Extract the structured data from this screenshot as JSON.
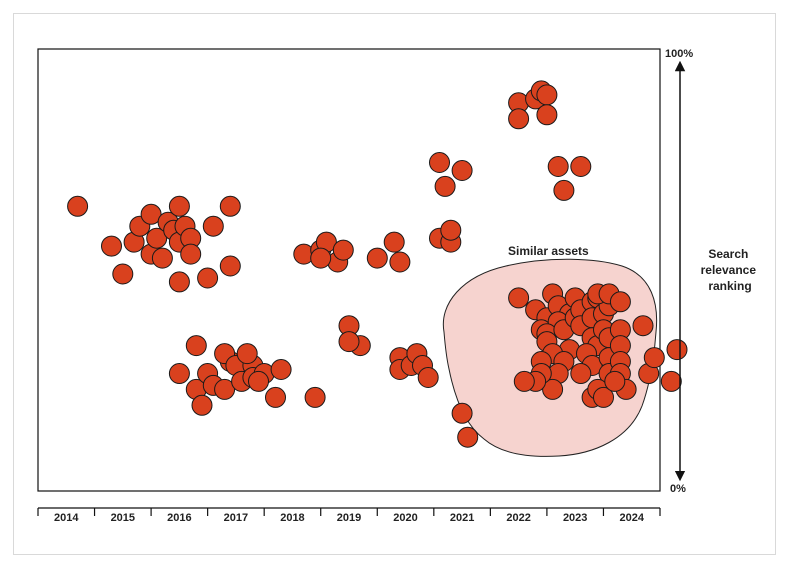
{
  "chart_data": {
    "type": "scatter",
    "title": "",
    "xlabel": "",
    "x_categories": [
      "2014",
      "2015",
      "2016",
      "2017",
      "2018",
      "2019",
      "2020",
      "2021",
      "2022",
      "2023",
      "2024"
    ],
    "y_axis": {
      "label_lines": [
        "Search",
        "relevance",
        "ranking"
      ],
      "top_label": "100%",
      "bottom_label": "0%",
      "ylim": [
        0,
        100
      ]
    },
    "highlight_region": {
      "label": "Similar assets",
      "color": "#f6d3cf"
    },
    "dot_color": "#d9411e",
    "points": [
      [
        2014.2,
        66
      ],
      [
        2014.8,
        56
      ],
      [
        2015.0,
        49
      ],
      [
        2015.2,
        57
      ],
      [
        2015.3,
        61
      ],
      [
        2015.5,
        64
      ],
      [
        2015.5,
        54
      ],
      [
        2015.6,
        58
      ],
      [
        2015.7,
        53
      ],
      [
        2015.8,
        62
      ],
      [
        2015.9,
        60
      ],
      [
        2016.0,
        66
      ],
      [
        2016.0,
        57
      ],
      [
        2016.1,
        61
      ],
      [
        2016.2,
        58
      ],
      [
        2016.2,
        54
      ],
      [
        2016.0,
        47
      ],
      [
        2016.5,
        48
      ],
      [
        2016.6,
        61
      ],
      [
        2016.9,
        66
      ],
      [
        2016.9,
        51
      ],
      [
        2016.3,
        31
      ],
      [
        2016.0,
        24
      ],
      [
        2016.3,
        20
      ],
      [
        2016.5,
        24
      ],
      [
        2016.6,
        21
      ],
      [
        2016.4,
        16
      ],
      [
        2016.8,
        20
      ],
      [
        2016.9,
        27
      ],
      [
        2016.8,
        29
      ],
      [
        2017.0,
        26
      ],
      [
        2017.1,
        22
      ],
      [
        2017.3,
        26
      ],
      [
        2017.3,
        23
      ],
      [
        2017.5,
        24
      ],
      [
        2017.2,
        29
      ],
      [
        2017.4,
        22
      ],
      [
        2017.8,
        25
      ],
      [
        2017.7,
        18
      ],
      [
        2018.4,
        18
      ],
      [
        2018.2,
        54
      ],
      [
        2018.5,
        55
      ],
      [
        2018.6,
        57
      ],
      [
        2018.8,
        52
      ],
      [
        2018.9,
        55
      ],
      [
        2018.5,
        53
      ],
      [
        2019.0,
        36
      ],
      [
        2019.2,
        31
      ],
      [
        2019.0,
        32
      ],
      [
        2019.5,
        53
      ],
      [
        2019.8,
        57
      ],
      [
        2019.9,
        52
      ],
      [
        2019.9,
        28
      ],
      [
        2019.9,
        25
      ],
      [
        2020.1,
        26
      ],
      [
        2020.2,
        29
      ],
      [
        2020.3,
        26
      ],
      [
        2020.4,
        23
      ],
      [
        2020.6,
        77
      ],
      [
        2020.7,
        71
      ],
      [
        2021.0,
        75
      ],
      [
        2020.6,
        58
      ],
      [
        2020.8,
        57
      ],
      [
        2020.8,
        60
      ],
      [
        2021.0,
        14
      ],
      [
        2021.1,
        8
      ],
      [
        2022.0,
        92
      ],
      [
        2022.0,
        88
      ],
      [
        2022.3,
        93
      ],
      [
        2022.4,
        95
      ],
      [
        2022.5,
        94
      ],
      [
        2022.5,
        89
      ],
      [
        2022.7,
        76
      ],
      [
        2022.8,
        70
      ],
      [
        2023.1,
        76
      ],
      [
        2022.0,
        43
      ],
      [
        2022.3,
        40
      ],
      [
        2022.5,
        38
      ],
      [
        2022.6,
        44
      ],
      [
        2022.4,
        35
      ],
      [
        2022.7,
        41
      ],
      [
        2022.9,
        39
      ],
      [
        2022.7,
        37
      ],
      [
        2022.5,
        34
      ],
      [
        2022.8,
        35
      ],
      [
        2022.5,
        32
      ],
      [
        2022.9,
        30
      ],
      [
        2022.6,
        29
      ],
      [
        2022.8,
        27
      ],
      [
        2022.7,
        24
      ],
      [
        2022.6,
        20
      ],
      [
        2023.0,
        38
      ],
      [
        2023.0,
        43
      ],
      [
        2023.1,
        40
      ],
      [
        2023.1,
        36
      ],
      [
        2023.3,
        42
      ],
      [
        2023.3,
        38
      ],
      [
        2023.3,
        33
      ],
      [
        2023.4,
        31
      ],
      [
        2023.2,
        29
      ],
      [
        2023.3,
        26
      ],
      [
        2023.1,
        24
      ],
      [
        2023.3,
        18
      ],
      [
        2023.4,
        43
      ],
      [
        2023.5,
        39
      ],
      [
        2023.5,
        35
      ],
      [
        2023.6,
        41
      ],
      [
        2023.6,
        33
      ],
      [
        2023.6,
        28
      ],
      [
        2023.6,
        24
      ],
      [
        2023.4,
        44
      ],
      [
        2023.6,
        44
      ],
      [
        2023.8,
        42
      ],
      [
        2023.8,
        35
      ],
      [
        2023.8,
        31
      ],
      [
        2023.8,
        27
      ],
      [
        2023.8,
        24
      ],
      [
        2022.4,
        27
      ],
      [
        2022.4,
        24
      ],
      [
        2022.3,
        22
      ],
      [
        2022.1,
        22
      ],
      [
        2023.9,
        20
      ],
      [
        2023.4,
        20
      ],
      [
        2023.5,
        18
      ],
      [
        2023.7,
        22
      ],
      [
        2024.2,
        36
      ],
      [
        2024.3,
        24
      ],
      [
        2024.4,
        28
      ],
      [
        2024.8,
        30
      ],
      [
        2024.7,
        22
      ]
    ]
  }
}
